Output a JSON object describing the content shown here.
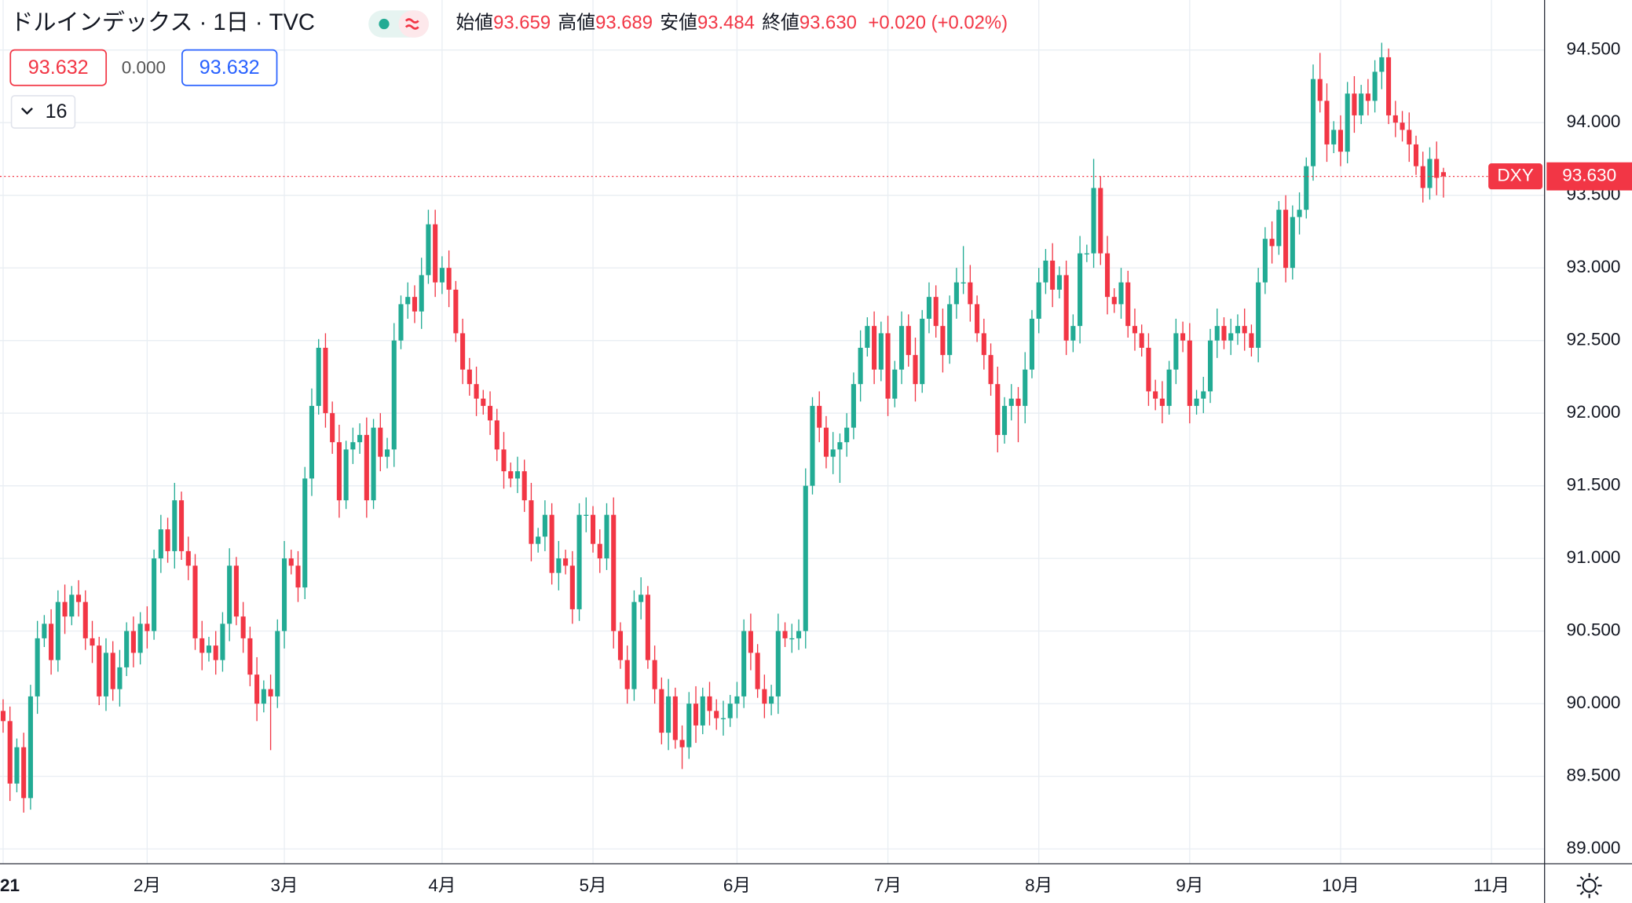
{
  "header": {
    "title": "ドルインデックス · 1日 · TVC",
    "ohlc": [
      {
        "label": "始値",
        "value": "93.659"
      },
      {
        "label": "高値",
        "value": "93.689"
      },
      {
        "label": "安値",
        "value": "93.484"
      },
      {
        "label": "終値",
        "value": "93.630"
      }
    ],
    "change": "+0.020 (+0.02%)"
  },
  "controls": {
    "bid": "93.632",
    "spread": "0.000",
    "ask": "93.632",
    "indicators": "16"
  },
  "chart_data": {
    "type": "candlestick",
    "symbol": "DXY",
    "last_price_label": "93.630",
    "up_color": "#22ab94",
    "down_color": "#f23645",
    "grid": true,
    "xlim": [
      -0.455,
      224.74
    ],
    "xticks": [
      {
        "value": 0,
        "label": "21"
      },
      {
        "value": 21,
        "label": "2月"
      },
      {
        "value": 41,
        "label": "3月"
      },
      {
        "value": 64,
        "label": "4月"
      },
      {
        "value": 86,
        "label": "5月"
      },
      {
        "value": 107,
        "label": "6月"
      },
      {
        "value": 129,
        "label": "7月"
      },
      {
        "value": 151,
        "label": "8月"
      },
      {
        "value": 173,
        "label": "9月"
      },
      {
        "value": 195,
        "label": "10月"
      },
      {
        "value": 217,
        "label": "11月"
      }
    ],
    "ylim": [
      88.898,
      94.844
    ],
    "yticks": [
      {
        "value": 89,
        "label": "89.000"
      },
      {
        "value": 89.5,
        "label": "89.500"
      },
      {
        "value": 90,
        "label": "90.000"
      },
      {
        "value": 90.5,
        "label": "90.500"
      },
      {
        "value": 91,
        "label": "91.000"
      },
      {
        "value": 91.5,
        "label": "91.500"
      },
      {
        "value": 92,
        "label": "92.000"
      },
      {
        "value": 92.5,
        "label": "92.500"
      },
      {
        "value": 93,
        "label": "93.000"
      },
      {
        "value": 93.5,
        "label": "93.500"
      },
      {
        "value": 94,
        "label": "94.000"
      },
      {
        "value": 94.5,
        "label": "94.500"
      }
    ],
    "candles": [
      [
        89.95,
        90.03,
        89.8,
        89.88
      ],
      [
        89.88,
        89.98,
        89.33,
        89.45
      ],
      [
        89.45,
        89.76,
        89.39,
        89.7
      ],
      [
        89.7,
        89.8,
        89.25,
        89.35
      ],
      [
        89.35,
        90.13,
        89.27,
        90.05
      ],
      [
        90.05,
        90.57,
        89.93,
        90.45
      ],
      [
        90.45,
        90.61,
        90.39,
        90.55
      ],
      [
        90.55,
        90.65,
        90.2,
        90.3
      ],
      [
        90.3,
        90.78,
        90.22,
        90.7
      ],
      [
        90.7,
        90.82,
        90.48,
        90.6
      ],
      [
        90.6,
        90.81,
        90.54,
        90.75
      ],
      [
        90.75,
        90.85,
        90.6,
        90.7
      ],
      [
        90.7,
        90.78,
        90.37,
        90.45
      ],
      [
        90.45,
        90.57,
        90.28,
        90.4
      ],
      [
        90.4,
        90.46,
        89.99,
        90.05
      ],
      [
        90.05,
        90.45,
        89.95,
        90.35
      ],
      [
        90.35,
        90.43,
        90.02,
        90.1
      ],
      [
        90.1,
        90.37,
        89.98,
        90.25
      ],
      [
        90.25,
        90.56,
        90.19,
        90.5
      ],
      [
        90.5,
        90.6,
        90.25,
        90.35
      ],
      [
        90.35,
        90.63,
        90.27,
        90.55
      ],
      [
        90.55,
        90.67,
        90.38,
        90.5
      ],
      [
        90.5,
        91.06,
        90.44,
        91.0
      ],
      [
        91.0,
        91.3,
        90.9,
        91.2
      ],
      [
        91.2,
        91.28,
        90.97,
        91.05
      ],
      [
        91.05,
        91.52,
        90.93,
        91.4
      ],
      [
        91.4,
        91.46,
        90.99,
        91.05
      ],
      [
        91.05,
        91.15,
        90.85,
        90.95
      ],
      [
        90.95,
        91.03,
        90.37,
        90.45
      ],
      [
        90.45,
        90.57,
        90.23,
        90.35
      ],
      [
        90.35,
        90.46,
        90.29,
        90.4
      ],
      [
        90.4,
        90.5,
        90.2,
        90.3
      ],
      [
        90.3,
        90.63,
        90.22,
        90.55
      ],
      [
        90.55,
        91.07,
        90.43,
        90.95
      ],
      [
        90.95,
        91.01,
        90.54,
        90.6
      ],
      [
        90.6,
        90.7,
        90.35,
        90.45
      ],
      [
        90.45,
        90.53,
        90.12,
        90.2
      ],
      [
        90.2,
        90.32,
        89.88,
        90.0
      ],
      [
        90.0,
        90.16,
        89.94,
        90.1
      ],
      [
        90.1,
        90.2,
        89.68,
        90.05
      ],
      [
        90.05,
        90.58,
        89.97,
        90.5
      ],
      [
        90.5,
        91.12,
        90.38,
        91.0
      ],
      [
        91.0,
        91.06,
        90.89,
        90.95
      ],
      [
        90.95,
        91.05,
        90.7,
        90.8
      ],
      [
        90.8,
        91.63,
        90.72,
        91.55
      ],
      [
        91.55,
        92.17,
        91.43,
        92.05
      ],
      [
        92.05,
        92.51,
        91.99,
        92.45
      ],
      [
        92.45,
        92.55,
        91.9,
        92.0
      ],
      [
        92.0,
        92.08,
        91.72,
        91.8
      ],
      [
        91.8,
        91.92,
        91.28,
        91.4
      ],
      [
        91.4,
        91.81,
        91.34,
        91.75
      ],
      [
        91.75,
        91.9,
        91.65,
        91.8
      ],
      [
        91.8,
        91.93,
        91.72,
        91.85
      ],
      [
        91.85,
        91.97,
        91.28,
        91.4
      ],
      [
        91.4,
        91.96,
        91.34,
        91.9
      ],
      [
        91.9,
        92.0,
        91.6,
        91.7
      ],
      [
        91.7,
        91.83,
        91.62,
        91.75
      ],
      [
        91.75,
        92.62,
        91.63,
        92.5
      ],
      [
        92.5,
        92.81,
        92.44,
        92.75
      ],
      [
        92.75,
        92.9,
        92.65,
        92.8
      ],
      [
        92.8,
        92.88,
        92.62,
        92.7
      ],
      [
        92.7,
        93.07,
        92.58,
        92.95
      ],
      [
        92.95,
        93.4,
        92.89,
        93.3
      ],
      [
        93.3,
        93.4,
        92.8,
        92.9
      ],
      [
        92.9,
        93.08,
        92.82,
        93.0
      ],
      [
        93.0,
        93.12,
        92.73,
        92.85
      ],
      [
        92.85,
        92.91,
        92.49,
        92.55
      ],
      [
        92.55,
        92.65,
        92.2,
        92.3
      ],
      [
        92.3,
        92.38,
        92.12,
        92.2
      ],
      [
        92.2,
        92.32,
        91.98,
        92.1
      ],
      [
        92.1,
        92.16,
        91.99,
        92.05
      ],
      [
        92.05,
        92.15,
        91.85,
        91.95
      ],
      [
        91.95,
        92.03,
        91.67,
        91.75
      ],
      [
        91.75,
        91.87,
        91.48,
        91.6
      ],
      [
        91.6,
        91.66,
        91.49,
        91.55
      ],
      [
        91.55,
        91.7,
        91.45,
        91.6
      ],
      [
        91.6,
        91.68,
        91.32,
        91.4
      ],
      [
        91.4,
        91.52,
        90.98,
        91.1
      ],
      [
        91.1,
        91.21,
        91.04,
        91.15
      ],
      [
        91.15,
        91.4,
        91.05,
        91.3
      ],
      [
        91.3,
        91.38,
        90.82,
        90.9
      ],
      [
        90.9,
        91.12,
        90.78,
        91.0
      ],
      [
        91.0,
        91.06,
        90.89,
        90.95
      ],
      [
        90.95,
        91.05,
        90.55,
        90.65
      ],
      [
        90.65,
        91.38,
        90.57,
        91.3
      ],
      [
        91.3,
        91.42,
        91.18,
        91.3
      ],
      [
        91.3,
        91.36,
        91.04,
        91.1
      ],
      [
        91.1,
        91.2,
        90.9,
        91.0
      ],
      [
        91.0,
        91.38,
        90.92,
        91.3
      ],
      [
        91.3,
        91.42,
        90.38,
        90.5
      ],
      [
        90.5,
        90.56,
        90.24,
        90.3
      ],
      [
        90.3,
        90.4,
        90.0,
        90.1
      ],
      [
        90.1,
        90.78,
        90.02,
        90.7
      ],
      [
        90.7,
        90.87,
        90.58,
        90.75
      ],
      [
        90.75,
        90.81,
        90.24,
        90.3
      ],
      [
        90.3,
        90.4,
        90.0,
        90.1
      ],
      [
        90.1,
        90.18,
        89.72,
        89.8
      ],
      [
        89.8,
        90.17,
        89.68,
        90.05
      ],
      [
        90.05,
        90.11,
        89.69,
        89.75
      ],
      [
        89.75,
        89.85,
        89.55,
        89.7
      ],
      [
        89.7,
        90.08,
        89.62,
        90.0
      ],
      [
        90.0,
        90.12,
        89.73,
        89.85
      ],
      [
        89.85,
        90.11,
        89.79,
        90.05
      ],
      [
        90.05,
        90.15,
        89.85,
        89.95
      ],
      [
        89.95,
        90.03,
        89.82,
        89.9
      ],
      [
        89.9,
        90.02,
        89.78,
        89.9
      ],
      [
        89.9,
        90.06,
        89.84,
        90.0
      ],
      [
        90.0,
        90.15,
        89.9,
        90.05
      ],
      [
        90.05,
        90.58,
        89.97,
        90.5
      ],
      [
        90.5,
        90.62,
        90.23,
        90.35
      ],
      [
        90.35,
        90.41,
        90.04,
        90.1
      ],
      [
        90.1,
        90.2,
        89.9,
        90.0
      ],
      [
        90.0,
        90.13,
        89.92,
        90.05
      ],
      [
        90.05,
        90.62,
        89.93,
        90.5
      ],
      [
        90.5,
        90.56,
        90.39,
        90.45
      ],
      [
        90.45,
        90.55,
        90.35,
        90.45
      ],
      [
        90.45,
        90.58,
        90.37,
        90.5
      ],
      [
        90.5,
        91.62,
        90.38,
        91.5
      ],
      [
        91.5,
        92.11,
        91.44,
        92.05
      ],
      [
        92.05,
        92.15,
        91.8,
        91.9
      ],
      [
        91.9,
        91.98,
        91.62,
        91.7
      ],
      [
        91.7,
        91.87,
        91.58,
        91.75
      ],
      [
        91.75,
        91.86,
        91.52,
        91.8
      ],
      [
        91.8,
        92.0,
        91.7,
        91.9
      ],
      [
        91.9,
        92.28,
        91.82,
        92.2
      ],
      [
        92.2,
        92.57,
        92.08,
        92.45
      ],
      [
        92.45,
        92.66,
        92.39,
        92.6
      ],
      [
        92.6,
        92.7,
        92.2,
        92.3
      ],
      [
        92.3,
        92.63,
        92.22,
        92.55
      ],
      [
        92.55,
        92.67,
        91.98,
        92.1
      ],
      [
        92.1,
        92.36,
        92.04,
        92.3
      ],
      [
        92.3,
        92.7,
        92.2,
        92.6
      ],
      [
        92.6,
        92.68,
        92.32,
        92.4
      ],
      [
        92.4,
        92.52,
        92.08,
        92.2
      ],
      [
        92.2,
        92.71,
        92.14,
        92.65
      ],
      [
        92.65,
        92.9,
        92.55,
        92.8
      ],
      [
        92.8,
        92.88,
        92.52,
        92.6
      ],
      [
        92.6,
        92.72,
        92.28,
        92.4
      ],
      [
        92.4,
        92.81,
        92.34,
        92.75
      ],
      [
        92.75,
        93.0,
        92.65,
        92.9
      ],
      [
        92.9,
        93.15,
        92.82,
        92.9
      ],
      [
        92.9,
        93.02,
        92.63,
        92.75
      ],
      [
        92.75,
        92.81,
        92.49,
        92.55
      ],
      [
        92.55,
        92.65,
        92.3,
        92.4
      ],
      [
        92.4,
        92.48,
        92.12,
        92.2
      ],
      [
        92.2,
        92.32,
        91.73,
        91.85
      ],
      [
        91.85,
        92.11,
        91.79,
        92.05
      ],
      [
        92.05,
        92.2,
        91.95,
        92.1
      ],
      [
        92.1,
        92.18,
        91.8,
        92.05
      ],
      [
        92.05,
        92.42,
        91.93,
        92.3
      ],
      [
        92.3,
        92.71,
        92.24,
        92.65
      ],
      [
        92.65,
        93.0,
        92.55,
        92.9
      ],
      [
        92.9,
        93.13,
        92.82,
        93.05
      ],
      [
        93.05,
        93.17,
        92.73,
        92.85
      ],
      [
        92.85,
        93.01,
        92.79,
        92.95
      ],
      [
        92.95,
        93.05,
        92.4,
        92.5
      ],
      [
        92.5,
        92.68,
        92.42,
        92.6
      ],
      [
        92.6,
        93.22,
        92.48,
        93.1
      ],
      [
        93.1,
        93.16,
        93.04,
        93.1
      ],
      [
        93.1,
        93.75,
        93.0,
        93.55
      ],
      [
        93.55,
        93.63,
        93.02,
        93.1
      ],
      [
        93.1,
        93.22,
        92.68,
        92.8
      ],
      [
        92.8,
        92.86,
        92.69,
        92.75
      ],
      [
        92.75,
        93.0,
        92.65,
        92.9
      ],
      [
        92.9,
        92.98,
        92.52,
        92.6
      ],
      [
        92.6,
        92.72,
        92.43,
        92.55
      ],
      [
        92.55,
        92.61,
        92.39,
        92.45
      ],
      [
        92.45,
        92.55,
        92.05,
        92.15
      ],
      [
        92.15,
        92.23,
        92.02,
        92.1
      ],
      [
        92.1,
        92.22,
        91.93,
        92.05
      ],
      [
        92.05,
        92.36,
        91.99,
        92.3
      ],
      [
        92.3,
        92.65,
        92.2,
        92.55
      ],
      [
        92.55,
        92.63,
        92.42,
        92.5
      ],
      [
        92.5,
        92.62,
        91.93,
        92.05
      ],
      [
        92.05,
        92.16,
        91.99,
        92.1
      ],
      [
        92.1,
        92.25,
        92.0,
        92.15
      ],
      [
        92.15,
        92.58,
        92.07,
        92.5
      ],
      [
        92.5,
        92.72,
        92.38,
        92.6
      ],
      [
        92.6,
        92.66,
        92.44,
        92.5
      ],
      [
        92.5,
        92.65,
        92.4,
        92.55
      ],
      [
        92.55,
        92.68,
        92.47,
        92.6
      ],
      [
        92.6,
        92.72,
        92.43,
        92.55
      ],
      [
        92.55,
        92.61,
        92.39,
        92.45
      ],
      [
        92.45,
        93.0,
        92.35,
        92.9
      ],
      [
        92.9,
        93.28,
        92.82,
        93.2
      ],
      [
        93.2,
        93.32,
        93.03,
        93.15
      ],
      [
        93.15,
        93.46,
        93.09,
        93.4
      ],
      [
        93.4,
        93.5,
        92.9,
        93.0
      ],
      [
        93.0,
        93.43,
        92.92,
        93.35
      ],
      [
        93.35,
        93.52,
        93.23,
        93.4
      ],
      [
        93.4,
        93.76,
        93.34,
        93.7
      ],
      [
        93.7,
        94.4,
        93.6,
        94.3
      ],
      [
        94.3,
        94.48,
        94.07,
        94.15
      ],
      [
        94.15,
        94.27,
        93.73,
        93.85
      ],
      [
        93.85,
        94.01,
        93.79,
        93.95
      ],
      [
        93.95,
        94.05,
        93.7,
        93.8
      ],
      [
        93.8,
        94.28,
        93.72,
        94.2
      ],
      [
        94.2,
        94.32,
        93.93,
        94.05
      ],
      [
        94.05,
        94.26,
        93.99,
        94.2
      ],
      [
        94.2,
        94.3,
        94.05,
        94.15
      ],
      [
        94.15,
        94.43,
        94.07,
        94.35
      ],
      [
        94.35,
        94.55,
        94.23,
        94.45
      ],
      [
        94.45,
        94.51,
        93.99,
        94.05
      ],
      [
        94.05,
        94.15,
        93.9,
        94.0
      ],
      [
        94.0,
        94.08,
        93.87,
        93.95
      ],
      [
        93.95,
        94.07,
        93.73,
        93.85
      ],
      [
        93.85,
        93.91,
        93.64,
        93.7
      ],
      [
        93.7,
        93.8,
        93.45,
        93.55
      ],
      [
        93.55,
        93.83,
        93.47,
        93.75
      ],
      [
        93.75,
        93.87,
        93.5,
        93.62
      ],
      [
        93.659,
        93.689,
        93.484,
        93.63
      ]
    ]
  }
}
